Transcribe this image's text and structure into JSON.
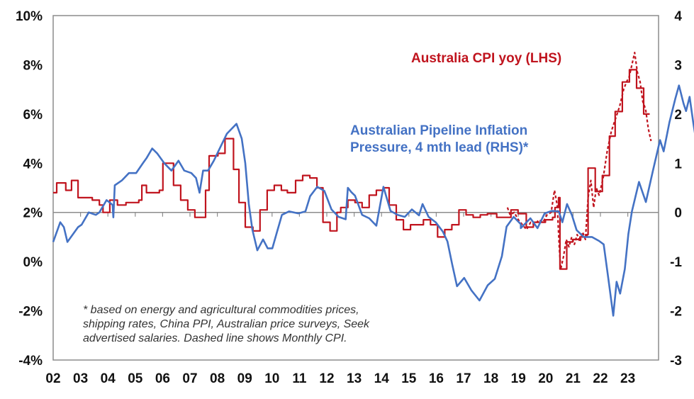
{
  "chart_data": {
    "type": "line",
    "title": "",
    "xlabel": "",
    "ylabel_left": "",
    "ylabel_right": "",
    "x_range": [
      2002.0,
      2024.1
    ],
    "x_ticks": [
      "02",
      "03",
      "04",
      "05",
      "06",
      "07",
      "08",
      "09",
      "10",
      "11",
      "12",
      "13",
      "14",
      "15",
      "16",
      "17",
      "18",
      "19",
      "20",
      "21",
      "22",
      "23"
    ],
    "y_left": {
      "range": [
        -4,
        10
      ],
      "ticks": [
        "10%",
        "8%",
        "6%",
        "4%",
        "2%",
        "0%",
        "-2%",
        "-4%"
      ],
      "tick_values": [
        10,
        8,
        6,
        4,
        2,
        0,
        -2,
        -4
      ]
    },
    "y_right": {
      "range": [
        -3,
        4
      ],
      "ticks": [
        "4",
        "3",
        "2",
        "1",
        "0",
        "-1",
        "-2",
        "-3"
      ],
      "tick_values": [
        4,
        3,
        2,
        1,
        0,
        -1,
        -2,
        -3
      ]
    },
    "zero_line_axis": "right",
    "grid": false,
    "annotations": [
      {
        "text": "Australia CPI yoy (LHS)",
        "color": "#C0141E"
      },
      {
        "text": "Australian Pipeline Inflation",
        "color": "#4472C4"
      },
      {
        "text": "Pressure, 4 mth lead (RHS)*",
        "color": "#4472C4"
      }
    ],
    "footnote": [
      "* based on energy and agricultural commodities prices,",
      "shipping rates, China PPI, Australian price surveys, Seek",
      "advertised salaries. Dashed line shows Monthly CPI."
    ],
    "series": [
      {
        "name": "Australia CPI yoy (LHS)",
        "axis": "left",
        "style": "step",
        "color": "#C0141E",
        "points": [
          [
            2002.0,
            2.8
          ],
          [
            2002.13,
            3.2
          ],
          [
            2002.46,
            2.9
          ],
          [
            2002.67,
            3.3
          ],
          [
            2002.91,
            2.6
          ],
          [
            2003.43,
            2.5
          ],
          [
            2003.69,
            2.3
          ],
          [
            2003.82,
            2.0
          ],
          [
            2004.07,
            2.5
          ],
          [
            2004.35,
            2.3
          ],
          [
            2004.66,
            2.4
          ],
          [
            2005.13,
            2.5
          ],
          [
            2005.24,
            3.1
          ],
          [
            2005.41,
            2.8
          ],
          [
            2005.88,
            2.9
          ],
          [
            2006.01,
            4.0
          ],
          [
            2006.4,
            3.1
          ],
          [
            2006.66,
            2.5
          ],
          [
            2006.92,
            2.1
          ],
          [
            2007.18,
            1.8
          ],
          [
            2007.57,
            2.9
          ],
          [
            2007.7,
            4.3
          ],
          [
            2008.02,
            4.4
          ],
          [
            2008.28,
            5.0
          ],
          [
            2008.59,
            3.75
          ],
          [
            2008.79,
            2.4
          ],
          [
            2009.02,
            1.4
          ],
          [
            2009.3,
            1.25
          ],
          [
            2009.56,
            2.1
          ],
          [
            2009.82,
            2.9
          ],
          [
            2010.08,
            3.1
          ],
          [
            2010.34,
            2.9
          ],
          [
            2010.56,
            2.8
          ],
          [
            2010.86,
            3.3
          ],
          [
            2011.12,
            3.5
          ],
          [
            2011.38,
            3.4
          ],
          [
            2011.64,
            3.0
          ],
          [
            2011.86,
            1.6
          ],
          [
            2012.12,
            1.25
          ],
          [
            2012.37,
            2.0
          ],
          [
            2012.51,
            2.2
          ],
          [
            2012.77,
            2.5
          ],
          [
            2013.03,
            2.4
          ],
          [
            2013.29,
            2.2
          ],
          [
            2013.55,
            2.7
          ],
          [
            2013.81,
            2.9
          ],
          [
            2014.07,
            3.0
          ],
          [
            2014.28,
            2.3
          ],
          [
            2014.54,
            1.7
          ],
          [
            2014.8,
            1.3
          ],
          [
            2015.06,
            1.5
          ],
          [
            2015.53,
            1.7
          ],
          [
            2015.79,
            1.5
          ],
          [
            2016.05,
            1.0
          ],
          [
            2016.31,
            1.3
          ],
          [
            2016.57,
            1.5
          ],
          [
            2016.83,
            2.1
          ],
          [
            2017.09,
            1.9
          ],
          [
            2017.35,
            1.8
          ],
          [
            2017.61,
            1.9
          ],
          [
            2017.87,
            1.95
          ],
          [
            2018.21,
            1.8
          ],
          [
            2018.73,
            2.1
          ],
          [
            2018.99,
            1.95
          ],
          [
            2019.29,
            1.4
          ],
          [
            2019.55,
            1.6
          ],
          [
            2019.77,
            1.6
          ],
          [
            2019.99,
            1.7
          ],
          [
            2020.25,
            1.8
          ],
          [
            2020.34,
            2.2
          ],
          [
            2020.47,
            2.6
          ],
          [
            2020.52,
            -0.3
          ],
          [
            2020.77,
            0.8
          ],
          [
            2020.99,
            0.9
          ],
          [
            2021.25,
            1.0
          ],
          [
            2021.51,
            1.1
          ],
          [
            2021.55,
            3.8
          ],
          [
            2021.81,
            2.85
          ],
          [
            2022.07,
            3.5
          ],
          [
            2022.33,
            5.1
          ],
          [
            2022.54,
            6.1
          ],
          [
            2022.8,
            7.3
          ],
          [
            2023.06,
            7.8
          ],
          [
            2023.32,
            7.05
          ],
          [
            2023.58,
            6.0
          ],
          [
            2023.8,
            6.0
          ]
        ]
      },
      {
        "name": "Australia Monthly CPI (LHS, dashed)",
        "axis": "left",
        "style": "dashed",
        "color": "#C0141E",
        "points": [
          [
            2018.6,
            2.2
          ],
          [
            2018.7,
            1.9
          ],
          [
            2018.85,
            2.0
          ],
          [
            2019.0,
            1.7
          ],
          [
            2019.15,
            1.5
          ],
          [
            2019.3,
            1.3
          ],
          [
            2019.45,
            1.6
          ],
          [
            2019.6,
            1.5
          ],
          [
            2019.75,
            1.7
          ],
          [
            2019.9,
            1.6
          ],
          [
            2020.05,
            1.9
          ],
          [
            2020.2,
            2.0
          ],
          [
            2020.32,
            2.9
          ],
          [
            2020.42,
            2.3
          ],
          [
            2020.5,
            0.5
          ],
          [
            2020.55,
            -0.3
          ],
          [
            2020.65,
            0.2
          ],
          [
            2020.75,
            0.9
          ],
          [
            2020.85,
            0.6
          ],
          [
            2020.95,
            1.0
          ],
          [
            2021.05,
            0.7
          ],
          [
            2021.15,
            1.1
          ],
          [
            2021.25,
            0.8
          ],
          [
            2021.35,
            1.2
          ],
          [
            2021.45,
            0.9
          ],
          [
            2021.55,
            2.6
          ],
          [
            2021.65,
            3.3
          ],
          [
            2021.75,
            2.2
          ],
          [
            2021.85,
            3.0
          ],
          [
            2021.95,
            2.7
          ],
          [
            2022.1,
            3.4
          ],
          [
            2022.25,
            4.5
          ],
          [
            2022.4,
            5.3
          ],
          [
            2022.55,
            5.8
          ],
          [
            2022.7,
            6.3
          ],
          [
            2022.85,
            7.0
          ],
          [
            2022.95,
            7.3
          ],
          [
            2023.05,
            7.5
          ],
          [
            2023.15,
            8.0
          ],
          [
            2023.25,
            8.5
          ],
          [
            2023.35,
            7.7
          ],
          [
            2023.45,
            7.3
          ],
          [
            2023.55,
            6.5
          ],
          [
            2023.65,
            6.2
          ],
          [
            2023.75,
            5.4
          ],
          [
            2023.85,
            4.9
          ]
        ]
      },
      {
        "name": "Australian Pipeline Inflation Pressure, 4 mth lead (RHS)",
        "axis": "right",
        "style": "solid",
        "color": "#4472C4",
        "points": [
          [
            2002.0,
            -0.6
          ],
          [
            2002.26,
            -0.2
          ],
          [
            2002.39,
            -0.3
          ],
          [
            2002.52,
            -0.6
          ],
          [
            2002.91,
            -0.3
          ],
          [
            2003.04,
            -0.25
          ],
          [
            2003.3,
            0.0
          ],
          [
            2003.56,
            -0.05
          ],
          [
            2003.69,
            0.0
          ],
          [
            2003.95,
            0.25
          ],
          [
            2004.07,
            0.2
          ],
          [
            2004.17,
            0.15
          ],
          [
            2004.2,
            -0.1
          ],
          [
            2004.25,
            0.55
          ],
          [
            2004.51,
            0.65
          ],
          [
            2004.77,
            0.8
          ],
          [
            2005.03,
            0.8
          ],
          [
            2005.28,
            1.0
          ],
          [
            2005.41,
            1.1
          ],
          [
            2005.62,
            1.3
          ],
          [
            2005.8,
            1.2
          ],
          [
            2006.06,
            1.0
          ],
          [
            2006.32,
            0.85
          ],
          [
            2006.45,
            0.95
          ],
          [
            2006.58,
            1.05
          ],
          [
            2006.79,
            0.85
          ],
          [
            2007.05,
            0.8
          ],
          [
            2007.22,
            0.7
          ],
          [
            2007.35,
            0.4
          ],
          [
            2007.48,
            0.85
          ],
          [
            2007.66,
            0.85
          ],
          [
            2007.87,
            1.05
          ],
          [
            2008.07,
            1.28
          ],
          [
            2008.35,
            1.6
          ],
          [
            2008.7,
            1.8
          ],
          [
            2008.89,
            1.5
          ],
          [
            2009.02,
            1.0
          ],
          [
            2009.15,
            0.17
          ],
          [
            2009.28,
            -0.35
          ],
          [
            2009.46,
            -0.77
          ],
          [
            2009.67,
            -0.55
          ],
          [
            2009.84,
            -0.73
          ],
          [
            2010.01,
            -0.73
          ],
          [
            2010.18,
            -0.4
          ],
          [
            2010.36,
            -0.05
          ],
          [
            2010.62,
            0.02
          ],
          [
            2010.96,
            -0.02
          ],
          [
            2011.22,
            0.02
          ],
          [
            2011.39,
            0.33
          ],
          [
            2011.65,
            0.52
          ],
          [
            2011.91,
            0.44
          ],
          [
            2012.17,
            0.06
          ],
          [
            2012.43,
            -0.09
          ],
          [
            2012.69,
            -0.14
          ],
          [
            2012.77,
            0.5
          ],
          [
            2012.9,
            0.41
          ],
          [
            2013.03,
            0.34
          ],
          [
            2013.29,
            -0.05
          ],
          [
            2013.55,
            -0.12
          ],
          [
            2013.81,
            -0.27
          ],
          [
            2014.07,
            0.52
          ],
          [
            2014.33,
            0.03
          ],
          [
            2014.59,
            -0.05
          ],
          [
            2014.85,
            -0.09
          ],
          [
            2015.11,
            0.06
          ],
          [
            2015.37,
            -0.06
          ],
          [
            2015.5,
            0.17
          ],
          [
            2015.72,
            -0.09
          ],
          [
            2015.98,
            -0.2
          ],
          [
            2016.24,
            -0.39
          ],
          [
            2016.41,
            -0.59
          ],
          [
            2016.58,
            -1.05
          ],
          [
            2016.76,
            -1.5
          ],
          [
            2017.02,
            -1.33
          ],
          [
            2017.28,
            -1.58
          ],
          [
            2017.58,
            -1.79
          ],
          [
            2017.88,
            -1.48
          ],
          [
            2018.14,
            -1.35
          ],
          [
            2018.4,
            -0.89
          ],
          [
            2018.57,
            -0.29
          ],
          [
            2018.83,
            -0.09
          ],
          [
            2019.09,
            -0.24
          ],
          [
            2019.09,
            -0.32
          ],
          [
            2019.44,
            -0.12
          ],
          [
            2019.7,
            -0.32
          ],
          [
            2019.96,
            -0.02
          ],
          [
            2020.22,
            0.03
          ],
          [
            2020.48,
            0.02
          ],
          [
            2020.61,
            -0.2
          ],
          [
            2020.78,
            0.17
          ],
          [
            2020.96,
            -0.06
          ],
          [
            2021.13,
            -0.36
          ],
          [
            2021.39,
            -0.5
          ],
          [
            2021.69,
            -0.5
          ],
          [
            2021.95,
            -0.58
          ],
          [
            2022.12,
            -0.65
          ],
          [
            2022.29,
            -1.35
          ],
          [
            2022.47,
            -2.1
          ],
          [
            2022.59,
            -1.41
          ],
          [
            2022.72,
            -1.65
          ],
          [
            2022.89,
            -1.15
          ],
          [
            2023.02,
            -0.44
          ],
          [
            2023.15,
            0.02
          ],
          [
            2023.41,
            0.62
          ],
          [
            2023.66,
            0.21
          ],
          [
            2023.92,
            0.85
          ],
          [
            2024.18,
            1.47
          ],
          [
            2024.31,
            1.24
          ],
          [
            2024.52,
            1.83
          ],
          [
            2024.74,
            2.32
          ],
          [
            2024.87,
            2.58
          ],
          [
            2025.04,
            2.21
          ],
          [
            2025.13,
            2.06
          ],
          [
            2025.26,
            2.35
          ],
          [
            2025.39,
            1.83
          ],
          [
            2025.56,
            1.23
          ],
          [
            2025.78,
            0.77
          ],
          [
            2026.0,
            0.26
          ],
          [
            2026.17,
            0.21
          ],
          [
            2026.3,
            0.59
          ]
        ]
      }
    ]
  }
}
